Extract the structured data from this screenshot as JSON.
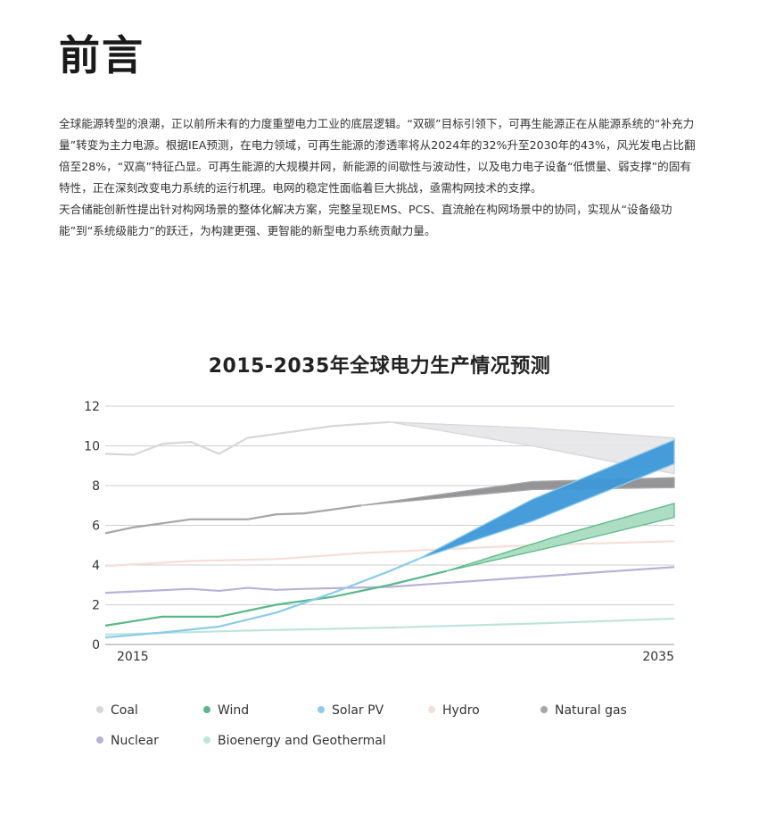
{
  "page": {
    "title": "前言",
    "paragraphs": [
      "全球能源转型的浪潮，正以前所未有的力度重塑电力工业的底层逻辑。“双碳”目标引领下，可再生能源正在从能源系统的“补充力量”转变为主力电源。根据IEA预测，在电力领域，可再生能源的渗透率将从2024年的32%升至2030年的43%，风光发电占比翻倍至28%，“双高”特征凸显。可再生能源的大规模并网，新能源的间歇性与波动性，以及电力电子设备“低惯量、弱支撑”的固有特性，正在深刻改变电力系统的运行机理。电网的稳定性面临着巨大挑战，亟需构网技术的支撑。",
      "天合储能创新性提出针对构网场景的整体化解决方案，完整呈现EMS、PCS、直流舱在构网场景中的协同，实现从“设备级功能”到“系统级能力”的跃迁，为构建更强、更智能的新型电力系统贡献力量。"
    ]
  },
  "chart_data": {
    "type": "line",
    "title": "2015-2035年全球电力生产情况预测",
    "xlabel": "",
    "ylabel": "",
    "x_tick_labels": [
      "2015",
      "2035"
    ],
    "xlim": [
      2015,
      2035
    ],
    "ylim": [
      0,
      12
    ],
    "y_ticks": [
      0,
      2,
      4,
      6,
      8,
      10,
      12
    ],
    "grid": true,
    "legend_placement": "bottom",
    "series": [
      {
        "name": "Coal",
        "color": "#d7d7d9",
        "x": [
          2015,
          2016,
          2017,
          2018,
          2019,
          2020,
          2021,
          2022,
          2023,
          2024,
          2025
        ],
        "values": [
          9.6,
          9.55,
          10.1,
          10.2,
          9.6,
          10.4,
          10.6,
          10.8,
          11.0,
          11.1,
          11.2
        ],
        "projection": {
          "x": [
            2025,
            2030,
            2035
          ],
          "low": [
            11.2,
            10.0,
            8.6
          ],
          "high": [
            11.2,
            10.9,
            10.4
          ]
        }
      },
      {
        "name": "Wind",
        "color": "#5ab88a",
        "x": [
          2015,
          2017,
          2019,
          2021,
          2023,
          2025,
          2027
        ],
        "values": [
          0.95,
          1.4,
          1.4,
          2.0,
          2.4,
          3.0,
          3.7
        ],
        "projection": {
          "x": [
            2027,
            2031,
            2035
          ],
          "low": [
            3.7,
            5.0,
            6.4
          ],
          "high": [
            3.7,
            5.5,
            7.1
          ]
        }
      },
      {
        "name": "Solar PV",
        "color": "#8ccbea",
        "x": [
          2015,
          2017,
          2019,
          2021,
          2023,
          2025,
          2026
        ],
        "values": [
          0.35,
          0.6,
          0.9,
          1.6,
          2.6,
          3.7,
          4.3
        ],
        "projection": {
          "x": [
            2026,
            2030,
            2035
          ],
          "low": [
            4.3,
            6.2,
            9.1
          ],
          "high": [
            4.3,
            7.3,
            10.3
          ]
        }
      },
      {
        "name": "Hydro",
        "color": "#f6ded6",
        "x": [
          2015,
          2018,
          2021,
          2024,
          2027,
          2030,
          2035
        ],
        "values": [
          3.95,
          4.2,
          4.3,
          4.6,
          4.8,
          5.0,
          5.2
        ]
      },
      {
        "name": "Natural gas",
        "color": "#a6a6a8",
        "x": [
          2015,
          2016,
          2018,
          2020,
          2021,
          2022,
          2024
        ],
        "values": [
          5.6,
          5.9,
          6.3,
          6.3,
          6.55,
          6.6,
          7.0
        ],
        "projection": {
          "x": [
            2024,
            2030,
            2035
          ],
          "low": [
            7.0,
            7.8,
            7.9
          ],
          "high": [
            7.0,
            8.2,
            8.4
          ]
        }
      },
      {
        "name": "Nuclear",
        "color": "#b8b2d6",
        "x": [
          2015,
          2018,
          2019,
          2020,
          2021,
          2022,
          2025,
          2030,
          2035
        ],
        "values": [
          2.6,
          2.8,
          2.7,
          2.85,
          2.75,
          2.8,
          2.9,
          3.4,
          3.9
        ]
      },
      {
        "name": "Bioenergy and Geothermal",
        "color": "#bfe4dc",
        "x": [
          2015,
          2020,
          2025,
          2030,
          2035
        ],
        "values": [
          0.5,
          0.7,
          0.85,
          1.05,
          1.3
        ]
      }
    ]
  }
}
